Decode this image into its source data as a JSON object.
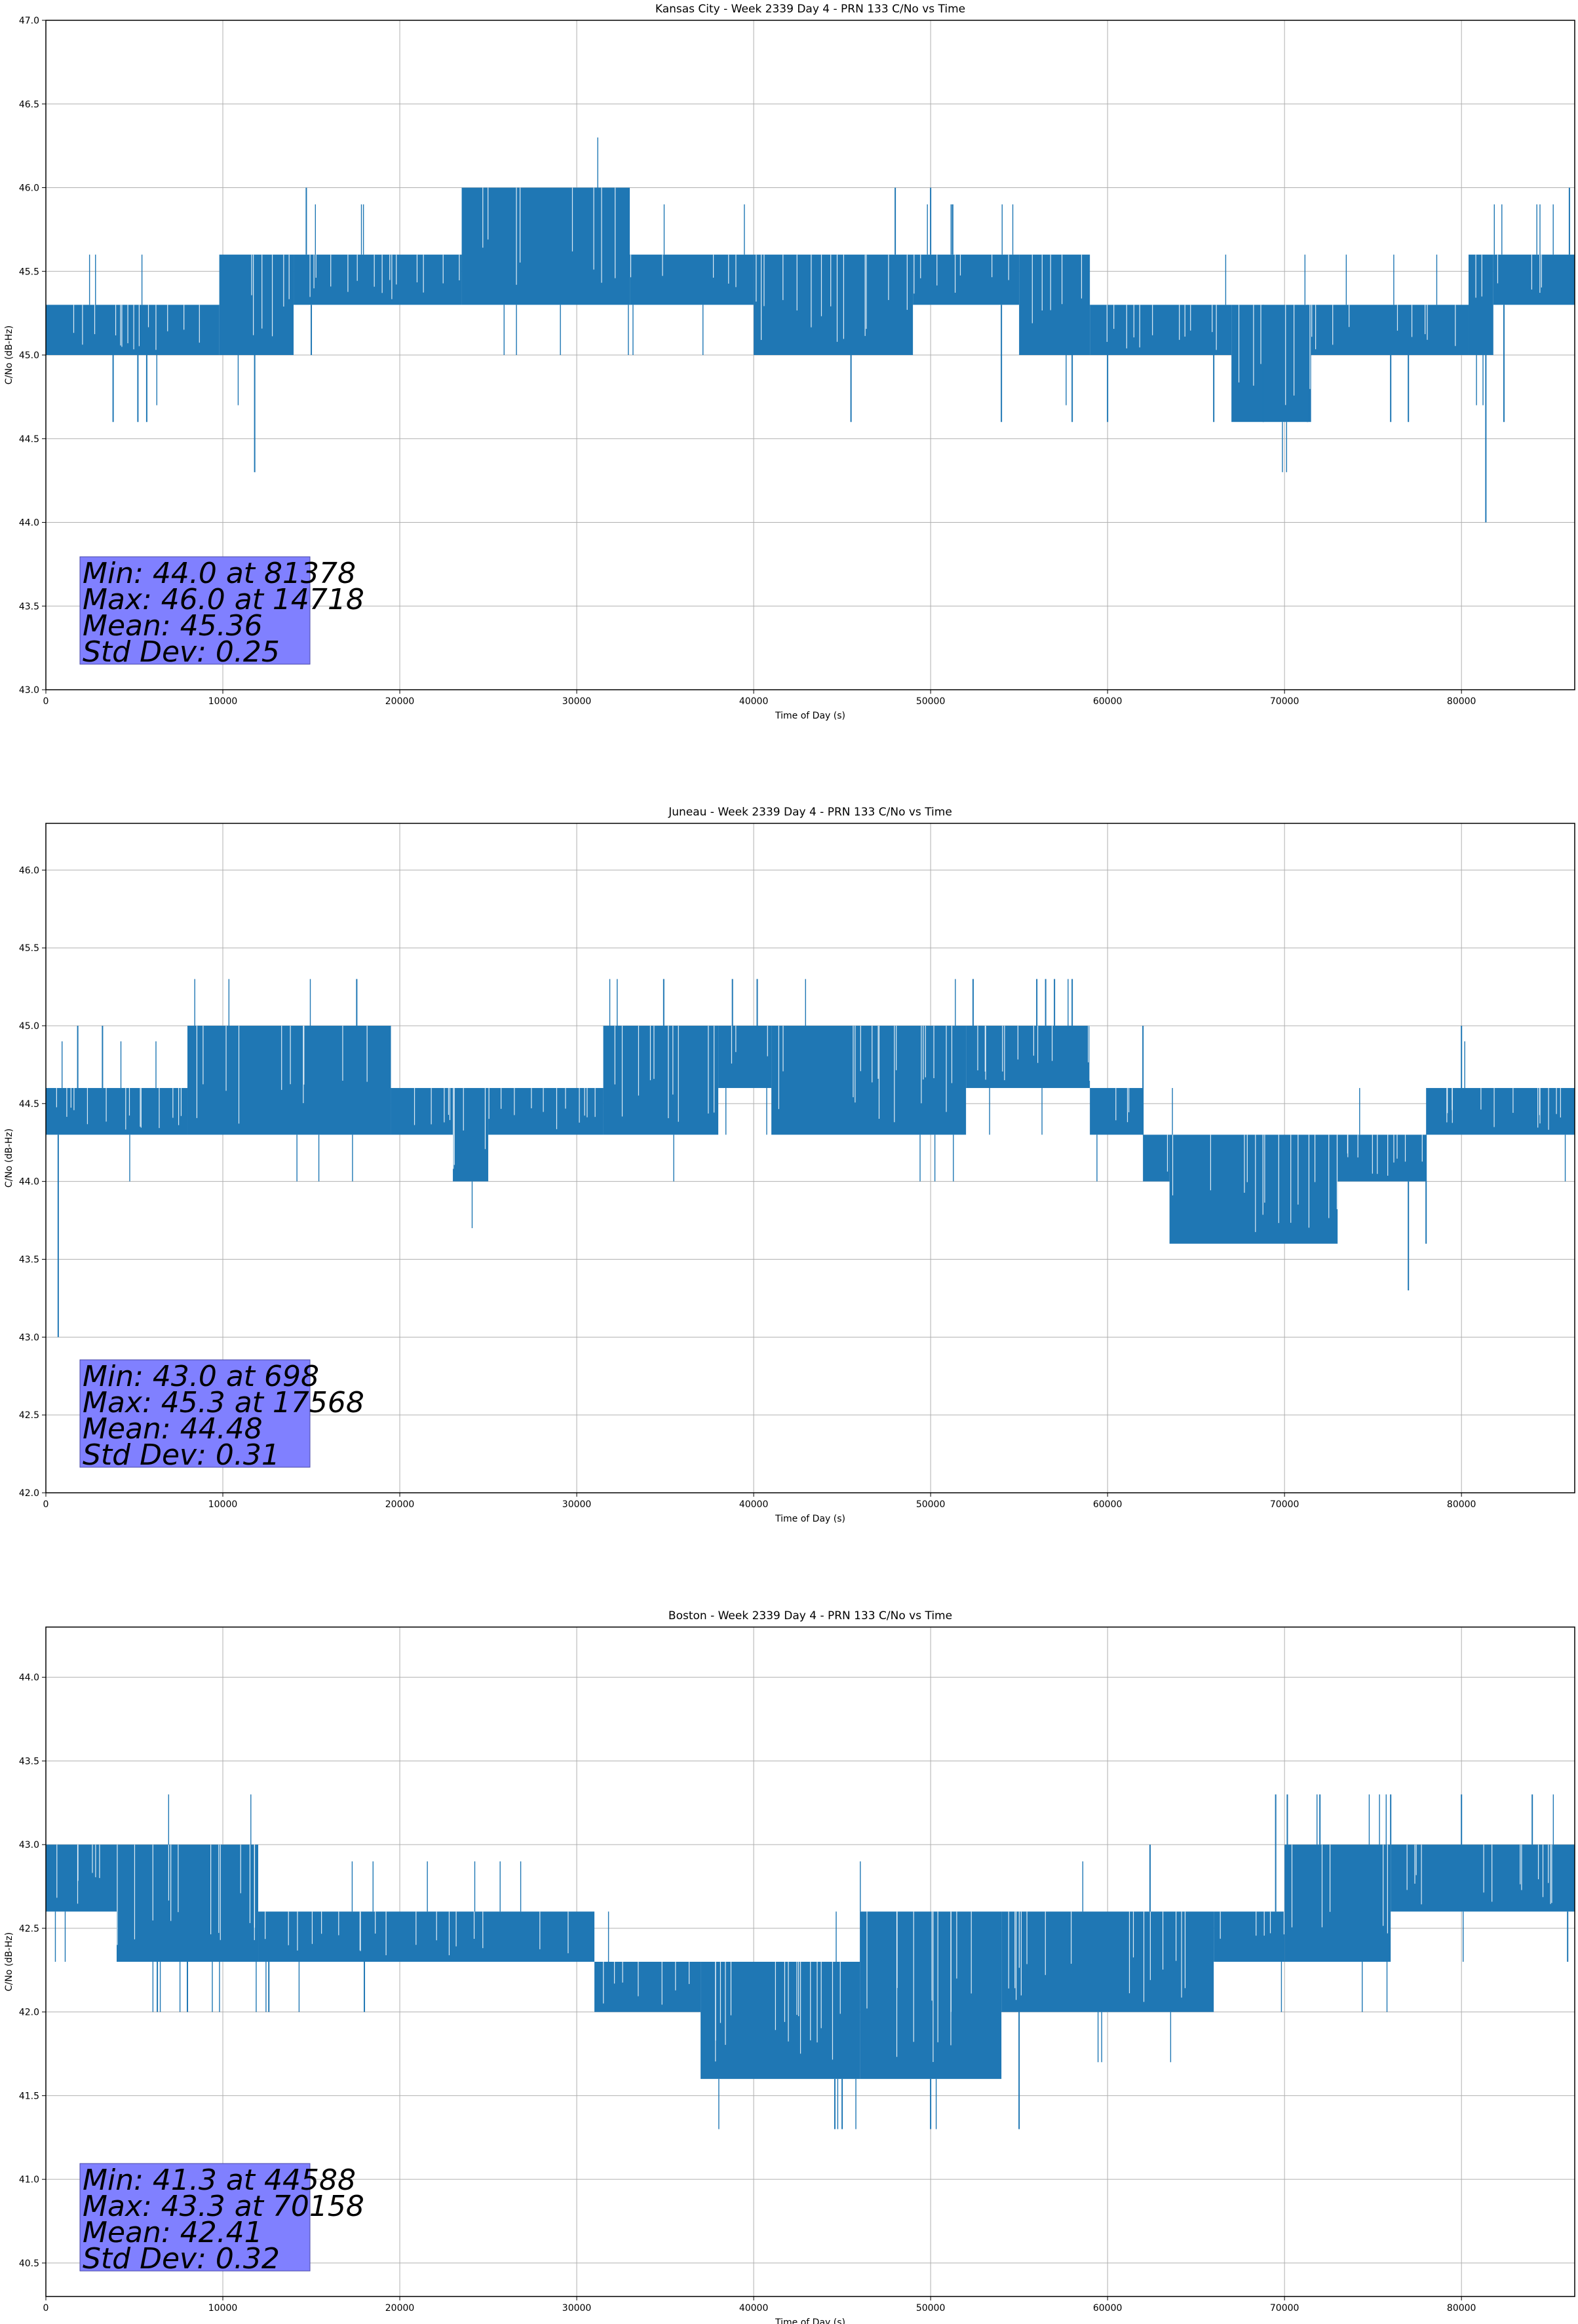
{
  "figure": {
    "data_color": "#1f77b4",
    "stats_box_color": "#8080ff"
  },
  "chart_data": [
    {
      "type": "line",
      "title": "Kansas City - Week 2339 Day 4 - PRN 133 C/No vs Time",
      "xlabel": "Time of Day (s)",
      "ylabel": "C/No (dB-Hz)",
      "xlim": [
        0,
        86400
      ],
      "ylim": [
        43.0,
        47.0
      ],
      "xticks": [
        "0",
        "10000",
        "20000",
        "30000",
        "40000",
        "50000",
        "60000",
        "70000",
        "80000"
      ],
      "yticks": [
        "43.0",
        "43.5",
        "44.0",
        "44.5",
        "45.0",
        "45.5",
        "46.0",
        "46.5",
        "47.0"
      ],
      "grid": true,
      "series": [
        {
          "values_min": 44.0,
          "values_max": 46.0,
          "mean": 45.36,
          "std": 0.25,
          "band_profile": [
            [
              0,
              45.0,
              45.3
            ],
            [
              9800,
              45.0,
              45.6
            ],
            [
              14000,
              45.3,
              45.6
            ],
            [
              23500,
              45.3,
              46.0
            ],
            [
              33000,
              45.3,
              45.6
            ],
            [
              40000,
              45.0,
              45.6
            ],
            [
              49000,
              45.3,
              45.6
            ],
            [
              55000,
              45.0,
              45.6
            ],
            [
              59000,
              45.0,
              45.3
            ],
            [
              67000,
              44.6,
              45.3
            ],
            [
              71500,
              45.0,
              45.3
            ],
            [
              80400,
              45.0,
              45.6
            ],
            [
              81800,
              45.3,
              45.6
            ],
            [
              86400,
              45.3,
              45.6
            ]
          ],
          "spikes": [
            [
              3800,
              44.6
            ],
            [
              5200,
              44.6
            ],
            [
              5700,
              44.6
            ],
            [
              11800,
              44.3
            ],
            [
              14718,
              46.0
            ],
            [
              15000,
              45.0
            ],
            [
              45500,
              44.6
            ],
            [
              48000,
              46.0
            ],
            [
              50000,
              46.0
            ],
            [
              54000,
              44.6
            ],
            [
              58000,
              44.6
            ],
            [
              60000,
              44.6
            ],
            [
              66000,
              44.6
            ],
            [
              68800,
              44.6
            ],
            [
              71300,
              44.6
            ],
            [
              76000,
              44.6
            ],
            [
              77000,
              44.6
            ],
            [
              81378,
              44.0
            ],
            [
              82400,
              44.6
            ],
            [
              86100,
              46.0
            ]
          ]
        }
      ],
      "annotation": {
        "min": "Min: 44.0 at 81378",
        "max": "Max: 46.0 at 14718",
        "mean": "Mean: 45.36",
        "std": "Std Dev: 0.25"
      }
    },
    {
      "type": "line",
      "title": "Juneau - Week 2339 Day 4 - PRN 133 C/No vs Time",
      "xlabel": "Time of Day (s)",
      "ylabel": "C/No (dB-Hz)",
      "xlim": [
        0,
        86400
      ],
      "ylim": [
        42.0,
        46.3
      ],
      "xticks": [
        "0",
        "10000",
        "20000",
        "30000",
        "40000",
        "50000",
        "60000",
        "70000",
        "80000"
      ],
      "yticks": [
        "42.0",
        "42.5",
        "43.0",
        "43.5",
        "44.0",
        "44.5",
        "45.0",
        "45.5",
        "46.0"
      ],
      "grid": true,
      "series": [
        {
          "values_min": 43.0,
          "values_max": 45.3,
          "mean": 44.48,
          "std": 0.31,
          "band_profile": [
            [
              0,
              44.3,
              44.6
            ],
            [
              8000,
              44.3,
              45.0
            ],
            [
              19500,
              44.3,
              44.6
            ],
            [
              23000,
              44.0,
              44.6
            ],
            [
              25000,
              44.3,
              44.6
            ],
            [
              31500,
              44.3,
              45.0
            ],
            [
              38000,
              44.6,
              45.0
            ],
            [
              41000,
              44.3,
              45.0
            ],
            [
              52000,
              44.6,
              45.0
            ],
            [
              59000,
              44.3,
              44.6
            ],
            [
              62000,
              44.0,
              44.3
            ],
            [
              63500,
              43.6,
              44.3
            ],
            [
              73000,
              44.0,
              44.3
            ],
            [
              78000,
              44.3,
              44.6
            ],
            [
              86400,
              44.3,
              44.6
            ]
          ],
          "spikes": [
            [
              698,
              43.0
            ],
            [
              1800,
              45.0
            ],
            [
              3200,
              45.0
            ],
            [
              17568,
              45.3
            ],
            [
              38800,
              45.3
            ],
            [
              40200,
              45.3
            ],
            [
              52400,
              45.3
            ],
            [
              56000,
              45.3
            ],
            [
              56500,
              45.3
            ],
            [
              57000,
              45.3
            ],
            [
              58000,
              45.3
            ],
            [
              62000,
              45.0
            ],
            [
              77000,
              43.3
            ],
            [
              78000,
              43.6
            ],
            [
              80000,
              45.0
            ]
          ]
        }
      ],
      "annotation": {
        "min": "Min: 43.0 at 698",
        "max": "Max: 45.3 at 17568",
        "mean": "Mean: 44.48",
        "std": "Std Dev: 0.31"
      }
    },
    {
      "type": "line",
      "title": "Boston - Week 2339 Day 4 - PRN 133 C/No vs Time",
      "xlabel": "Time of Day (s)",
      "ylabel": "C/No (dB-Hz)",
      "xlim": [
        0,
        86400
      ],
      "ylim": [
        40.3,
        44.3
      ],
      "xticks": [
        "0",
        "10000",
        "20000",
        "30000",
        "40000",
        "50000",
        "60000",
        "70000",
        "80000"
      ],
      "yticks": [
        "40.5",
        "41.0",
        "41.5",
        "42.0",
        "42.5",
        "43.0",
        "43.5",
        "44.0"
      ],
      "grid": true,
      "series": [
        {
          "values_min": 41.3,
          "values_max": 43.3,
          "mean": 42.41,
          "std": 0.32,
          "band_profile": [
            [
              0,
              42.6,
              43.0
            ],
            [
              4000,
              42.3,
              43.0
            ],
            [
              12000,
              42.3,
              42.6
            ],
            [
              31000,
              42.0,
              42.3
            ],
            [
              37000,
              41.6,
              42.3
            ],
            [
              46000,
              41.6,
              42.6
            ],
            [
              54000,
              42.0,
              42.6
            ],
            [
              66000,
              42.3,
              42.6
            ],
            [
              70000,
              42.3,
              43.0
            ],
            [
              76000,
              42.6,
              43.0
            ],
            [
              86400,
              42.6,
              43.0
            ]
          ],
          "spikes": [
            [
              6300,
              42.0
            ],
            [
              8000,
              42.0
            ],
            [
              12600,
              42.0
            ],
            [
              18000,
              42.0
            ],
            [
              44588,
              41.3
            ],
            [
              45000,
              41.3
            ],
            [
              50000,
              41.3
            ],
            [
              55000,
              41.3
            ],
            [
              62400,
              43.0
            ],
            [
              69500,
              43.3
            ],
            [
              70158,
              43.3
            ],
            [
              72000,
              43.3
            ],
            [
              76000,
              43.3
            ],
            [
              80000,
              43.3
            ],
            [
              84000,
              43.3
            ],
            [
              86000,
              42.3
            ]
          ]
        }
      ],
      "annotation": {
        "min": "Min: 41.3 at 44588",
        "max": "Max: 43.3 at 70158",
        "mean": "Mean: 42.41",
        "std": "Std Dev: 0.32"
      }
    }
  ]
}
